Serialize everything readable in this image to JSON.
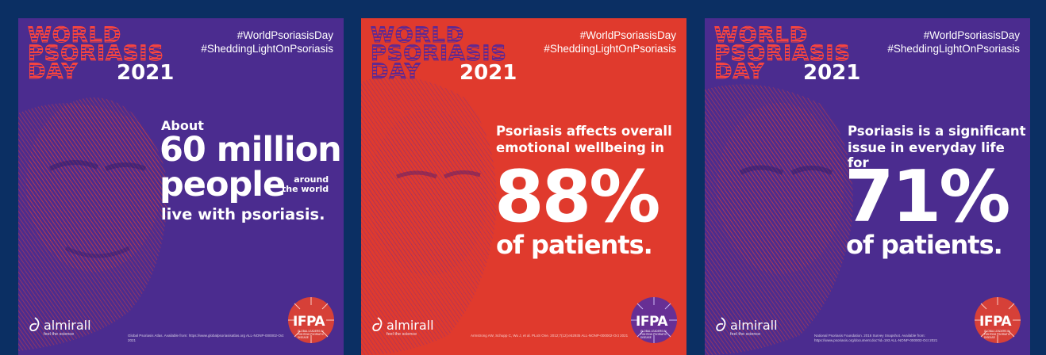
{
  "cards": [
    {
      "background": "#4b2c8f",
      "logo": {
        "line1": "WORLD",
        "line2": "PSORIASIS",
        "line3": "DAY",
        "year": "2021"
      },
      "hashtags": [
        "#WorldPsoriasisDay",
        "#SheddingLightOnPsoriasis"
      ],
      "headline": {
        "about": "About",
        "big": "60 million",
        "people": "people",
        "around": "around",
        "the_world": "the world",
        "live": "live with psoriasis."
      },
      "brand": {
        "name": "almirall",
        "tagline": "feel the science"
      },
      "source": "Global Psoriasis Atlas. Available from: https://www.globalpsoriasisatlas.org ALL-NONP-000002-Oct 2021",
      "ifpa": {
        "name": "IFPA",
        "sub": "GLOBAL LEADERS IN FIGHTING PSORIATIC DISEASE"
      },
      "icons": {
        "brand": "almirall-logo-icon",
        "ifpa": "ifpa-sunburst-icon"
      }
    },
    {
      "background": "#e03a2d",
      "logo": {
        "line1": "WORLD",
        "line2": "PSORIASIS",
        "line3": "DAY",
        "year": "2021"
      },
      "hashtags": [
        "#WorldPsoriasisDay",
        "#SheddingLightOnPsoriasis"
      ],
      "headline": {
        "line1": "Psoriasis affects overall",
        "line2": "emotional wellbeing in",
        "percent": "88%",
        "of": "of patients."
      },
      "brand": {
        "name": "almirall",
        "tagline": "feel the science"
      },
      "source": "Armstrong AW, Schupp C, Wu J, et al. PLoS One. 2012;7(12):e52935 ALL-NONP-000002-Oct 2021",
      "ifpa": {
        "name": "IFPA",
        "sub": "GLOBAL LEADERS IN FIGHTING PSORIATIC DISEASE"
      },
      "icons": {
        "brand": "almirall-logo-icon",
        "ifpa": "ifpa-sunburst-icon"
      }
    },
    {
      "background": "#4b2c8f",
      "logo": {
        "line1": "WORLD",
        "line2": "PSORIASIS",
        "line3": "DAY",
        "year": "2021"
      },
      "hashtags": [
        "#WorldPsoriasisDay",
        "#SheddingLightOnPsoriasis"
      ],
      "headline": {
        "line1": "Psoriasis is a significant",
        "line2": "issue in everyday life for",
        "percent": "71%",
        "of": "of patients."
      },
      "brand": {
        "name": "almirall",
        "tagline": "feel the science"
      },
      "source": "National Psoriasis Foundation. 2016 Survey Snapshot. Available from: https://www.psoriasis.org/document.doc?id=193 ALL-NONP-000002-Oct 2021",
      "ifpa": {
        "name": "IFPA",
        "sub": "GLOBAL LEADERS IN FIGHTING PSORIATIC DISEASE"
      },
      "icons": {
        "brand": "almirall-logo-icon",
        "ifpa": "ifpa-sunburst-icon"
      }
    }
  ]
}
